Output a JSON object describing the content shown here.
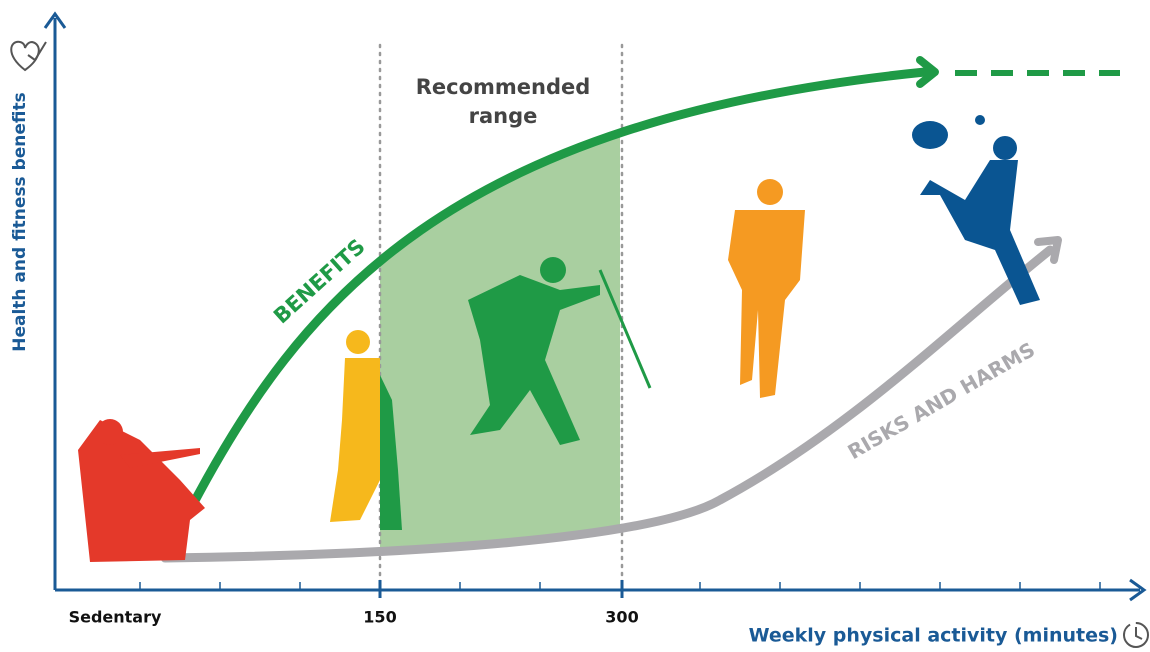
{
  "y_axis_label": "Health and fitness benefits",
  "x_axis_label": "Weekly physical activity (minutes)",
  "x_labels": [
    "Sedentary",
    "150",
    "300"
  ],
  "recommended_range": [
    "Recommended",
    "range"
  ],
  "curves": {
    "benefits": "BENEFITS",
    "risks": "RISKS AND HARMS"
  }
}
